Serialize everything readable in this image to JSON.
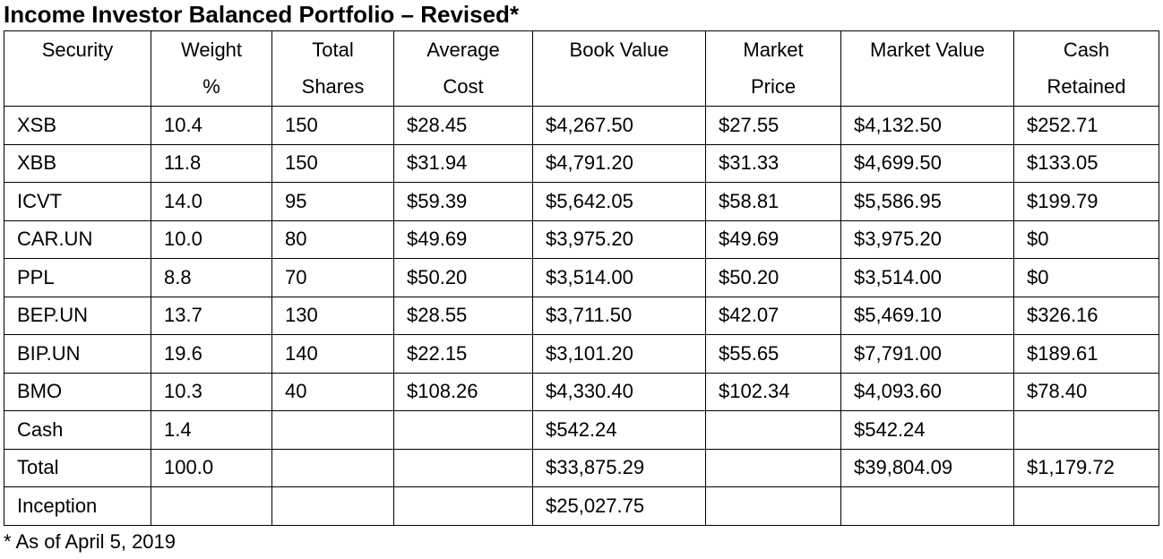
{
  "title": "Income Investor Balanced Portfolio – Revised*",
  "table": {
    "headers": [
      {
        "line1": "Security",
        "line2": ""
      },
      {
        "line1": "Weight",
        "line2": "%"
      },
      {
        "line1": "Total",
        "line2": "Shares"
      },
      {
        "line1": "Average",
        "line2": "Cost"
      },
      {
        "line1": "Book Value",
        "line2": ""
      },
      {
        "line1": "Market",
        "line2": "Price"
      },
      {
        "line1": "Market Value",
        "line2": ""
      },
      {
        "line1": "Cash",
        "line2": "Retained"
      }
    ],
    "rows": [
      [
        "XSB",
        "10.4",
        "150",
        "$28.45",
        "$4,267.50",
        "$27.55",
        "$4,132.50",
        "$252.71"
      ],
      [
        "XBB",
        "11.8",
        "150",
        "$31.94",
        "$4,791.20",
        "$31.33",
        "$4,699.50",
        "$133.05"
      ],
      [
        "ICVT",
        "14.0",
        "95",
        "$59.39",
        "$5,642.05",
        "$58.81",
        "$5,586.95",
        "$199.79"
      ],
      [
        "CAR.UN",
        "10.0",
        "80",
        "$49.69",
        "$3,975.20",
        "$49.69",
        "$3,975.20",
        "$0"
      ],
      [
        "PPL",
        "8.8",
        "70",
        "$50.20",
        "$3,514.00",
        "$50.20",
        "$3,514.00",
        "$0"
      ],
      [
        "BEP.UN",
        "13.7",
        "130",
        "$28.55",
        "$3,711.50",
        "$42.07",
        "$5,469.10",
        "$326.16"
      ],
      [
        "BIP.UN",
        "19.6",
        "140",
        "$22.15",
        "$3,101.20",
        "$55.65",
        "$7,791.00",
        "$189.61"
      ],
      [
        "BMO",
        "10.3",
        "40",
        "$108.26",
        "$4,330.40",
        "$102.34",
        "$4,093.60",
        "$78.40"
      ],
      [
        "Cash",
        "1.4",
        "",
        "",
        "$542.24",
        "",
        "$542.24",
        ""
      ],
      [
        "Total",
        "100.0",
        "",
        "",
        "$33,875.29",
        "",
        "$39,804.09",
        "$1,179.72"
      ],
      [
        "Inception",
        "",
        "",
        "",
        "$25,027.75",
        "",
        "",
        ""
      ]
    ]
  },
  "footnote": "* As of April 5, 2019"
}
